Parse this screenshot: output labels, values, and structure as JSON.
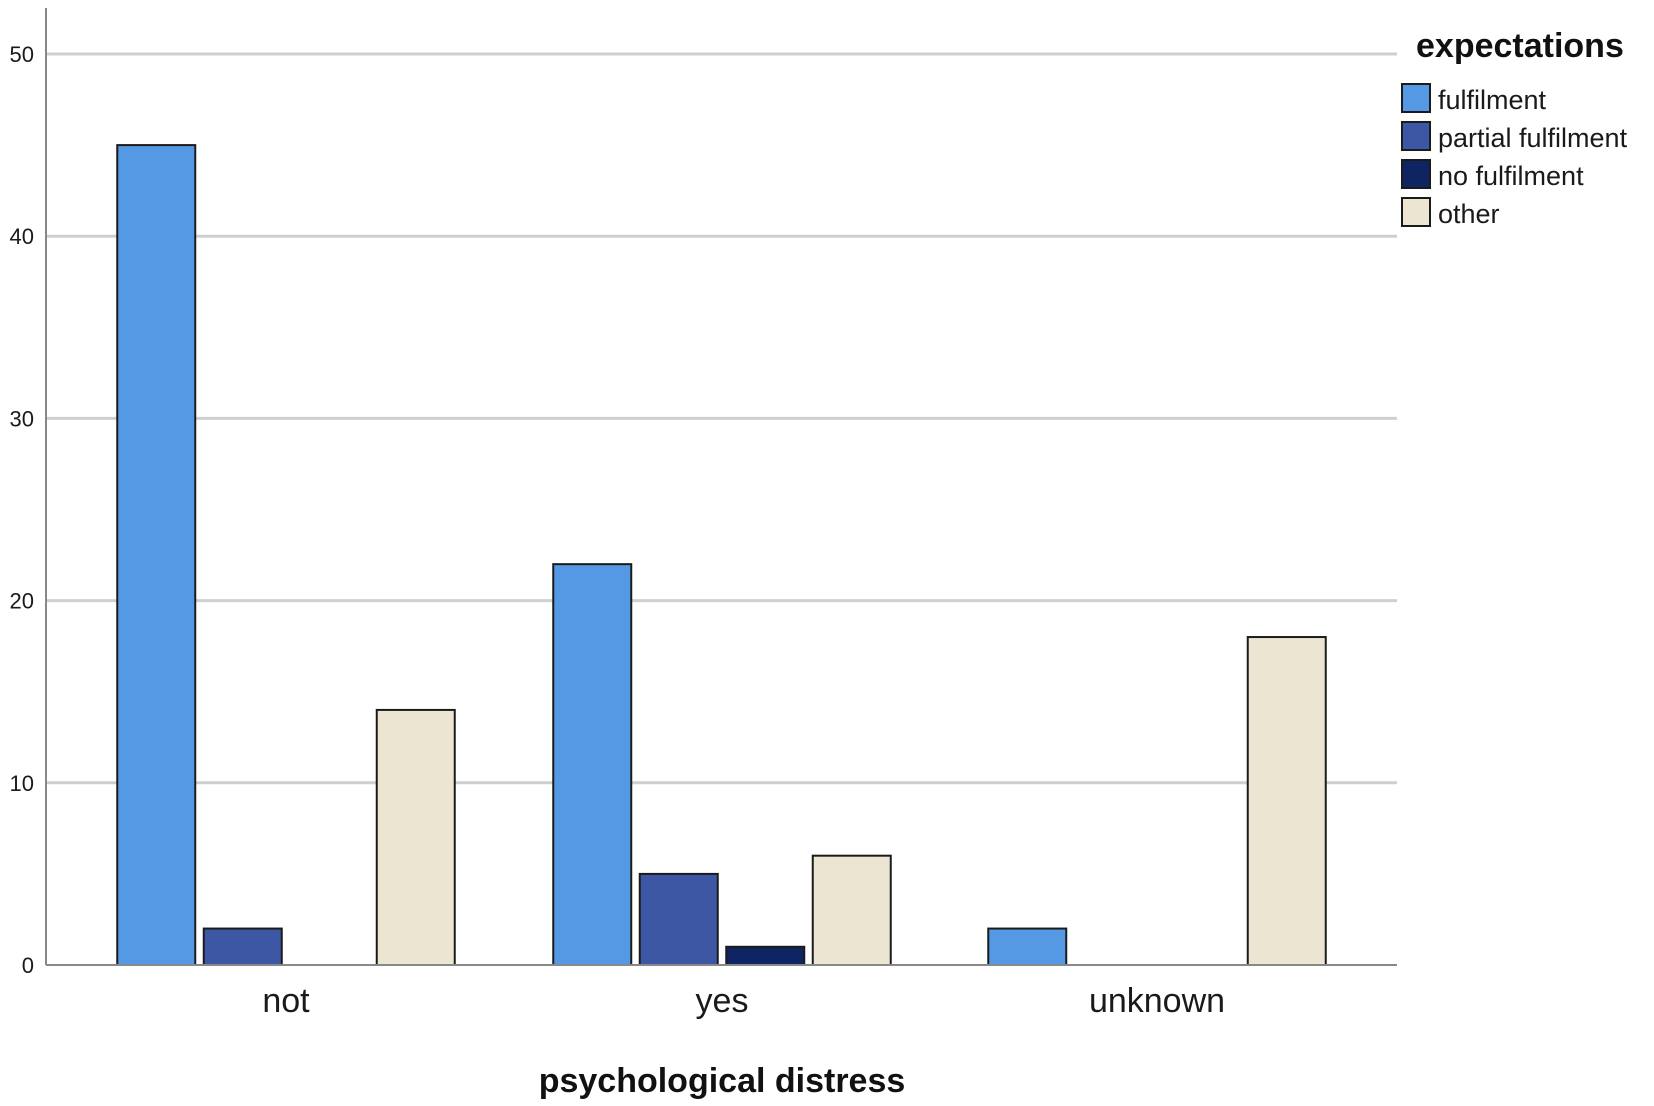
{
  "chart_data": {
    "type": "bar",
    "title": "",
    "xlabel": "psychological distress",
    "ylabel": "",
    "categories": [
      "not",
      "yes",
      "unknown"
    ],
    "series": [
      {
        "name": "fulfilment",
        "values": [
          45,
          22,
          2
        ],
        "color": "#5599e4"
      },
      {
        "name": "partial fulfilment",
        "values": [
          2,
          5,
          0
        ],
        "color": "#3d57a5"
      },
      {
        "name": "no fulfilment",
        "values": [
          0,
          1,
          0
        ],
        "color": "#0e2463"
      },
      {
        "name": "other",
        "values": [
          14,
          6,
          18
        ],
        "color": "#ece5d1"
      }
    ],
    "ylim": [
      0,
      50
    ],
    "yticks": [
      0,
      10,
      20,
      30,
      40,
      50
    ],
    "grid": true,
    "legend": {
      "title": "expectations",
      "position": "top-right"
    }
  }
}
